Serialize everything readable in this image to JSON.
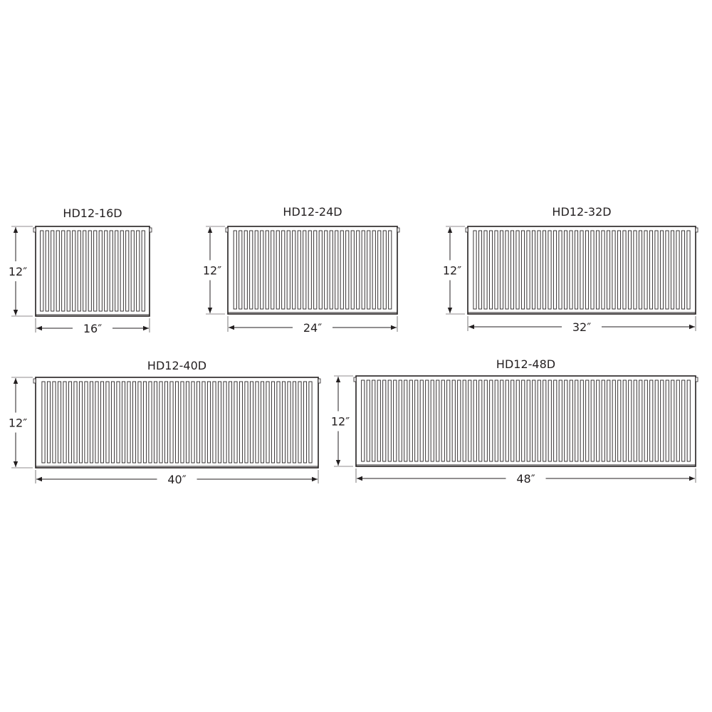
{
  "line_color": "#231f20",
  "radiators": [
    {
      "model": "HD12-16D",
      "height_label": "12″",
      "width_label": "16″"
    },
    {
      "model": "HD12-24D",
      "height_label": "12″",
      "width_label": "24″"
    },
    {
      "model": "HD12-32D",
      "height_label": "12″",
      "width_label": "32″"
    },
    {
      "model": "HD12-40D",
      "height_label": "12″",
      "width_label": "40″"
    },
    {
      "model": "HD12-48D",
      "height_label": "12″",
      "width_label": "48″"
    }
  ]
}
